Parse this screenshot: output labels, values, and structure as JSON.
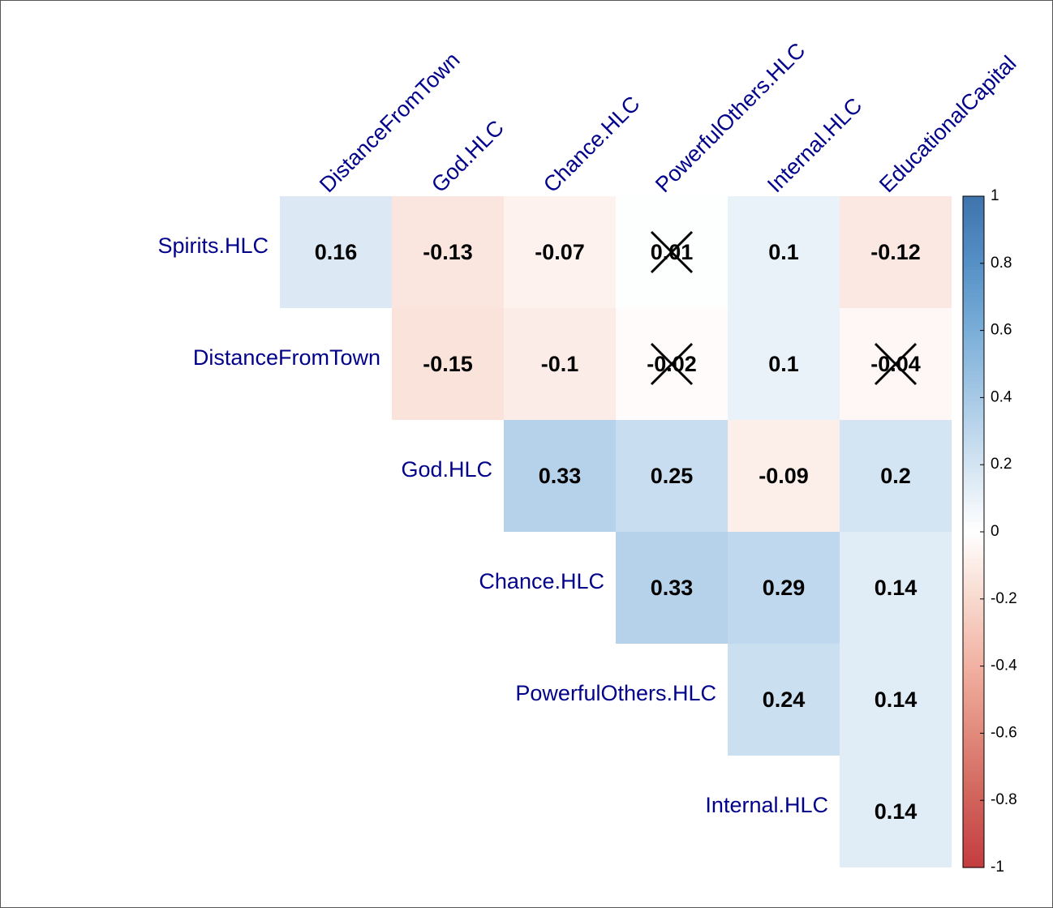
{
  "chart_data": {
    "type": "heatmap",
    "rows": [
      "Spirits.HLC",
      "DistanceFromTown",
      "God.HLC",
      "Chance.HLC",
      "PowerfulOthers.HLC",
      "Internal.HLC"
    ],
    "columns": [
      "DistanceFromTown",
      "God.HLC",
      "Chance.HLC",
      "PowerfulOthers.HLC",
      "Internal.HLC",
      "EducationalCapital"
    ],
    "values": [
      [
        0.16,
        -0.13,
        -0.07,
        0.01,
        0.1,
        -0.12
      ],
      [
        null,
        -0.15,
        -0.1,
        -0.02,
        0.1,
        -0.04
      ],
      [
        null,
        null,
        0.33,
        0.25,
        -0.09,
        0.2
      ],
      [
        null,
        null,
        null,
        0.33,
        0.29,
        0.14
      ],
      [
        null,
        null,
        null,
        null,
        0.24,
        0.14
      ],
      [
        null,
        null,
        null,
        null,
        null,
        0.14
      ]
    ],
    "crossed": [
      [
        false,
        false,
        false,
        true,
        false,
        false
      ],
      [
        null,
        false,
        false,
        true,
        false,
        true
      ],
      [
        null,
        null,
        false,
        false,
        false,
        false
      ],
      [
        null,
        null,
        null,
        false,
        false,
        false
      ],
      [
        null,
        null,
        null,
        null,
        false,
        false
      ],
      [
        null,
        null,
        null,
        null,
        null,
        false
      ]
    ],
    "zlim": [
      -1,
      1
    ],
    "zticks": [
      -1,
      -0.8,
      -0.6,
      -0.4,
      -0.2,
      0,
      0.2,
      0.4,
      0.6,
      0.8,
      1
    ],
    "colorscale": [
      "#c43c3e",
      "#d0625a",
      "#e18a7b",
      "#f1b1a2",
      "#f8d9ce",
      "#ffffff",
      "#d3e4f2",
      "#a7c9e6",
      "#7aaed8",
      "#5590c6",
      "#3f73ac"
    ]
  }
}
